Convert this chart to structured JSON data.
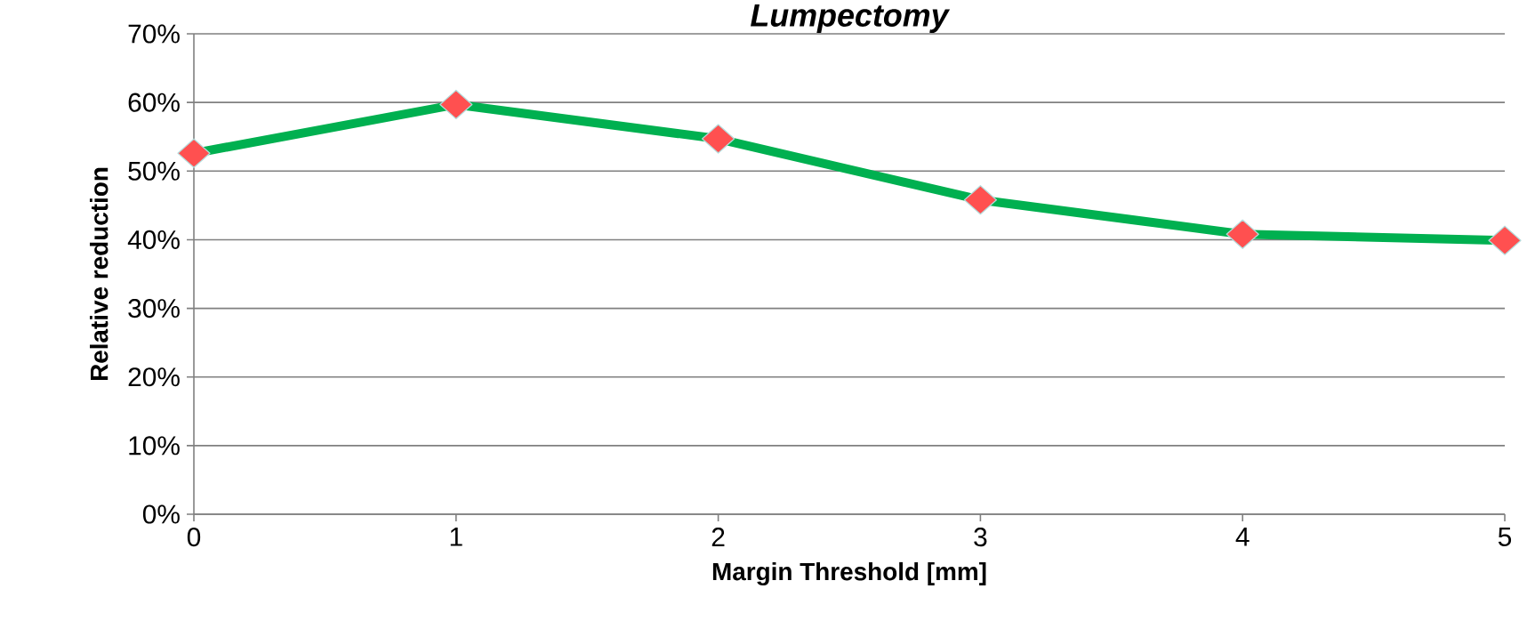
{
  "chart_data": {
    "type": "line",
    "title": "Lumpectomy",
    "xlabel": "Margin Threshold [mm]",
    "ylabel": "Relative reduction",
    "x": [
      0,
      1,
      2,
      3,
      4,
      5
    ],
    "series": [
      {
        "color": "#00b050",
        "values": [
          52.6,
          59.7,
          54.7,
          45.8,
          40.8,
          39.9
        ]
      }
    ],
    "marker": "diamond",
    "line_style": "solid",
    "xlim": [
      0,
      5
    ],
    "xticks": [
      0,
      1,
      2,
      3,
      4,
      5
    ],
    "ylim": [
      0,
      70
    ],
    "yticks": [
      {
        "value": 0,
        "label": "0%"
      },
      {
        "value": 10,
        "label": "10%"
      },
      {
        "value": 20,
        "label": "20%"
      },
      {
        "value": 30,
        "label": "30%"
      },
      {
        "value": 40,
        "label": "40%"
      },
      {
        "value": 50,
        "label": "50%"
      },
      {
        "value": 60,
        "label": "60%"
      },
      {
        "value": 70,
        "label": "70%"
      }
    ],
    "grid": "y"
  }
}
